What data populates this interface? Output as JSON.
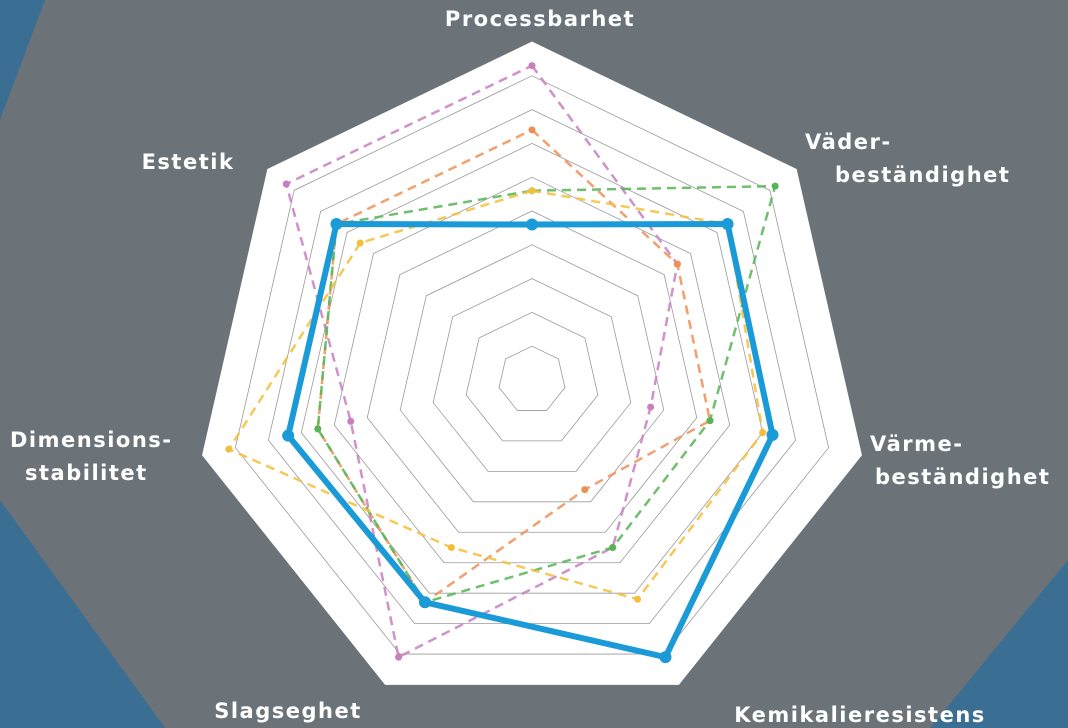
{
  "chart_data": {
    "type": "radar",
    "categories": [
      [
        "Processbarhet"
      ],
      [
        "Väder-",
        "beständighet"
      ],
      [
        "Värme-",
        "beständighet"
      ],
      [
        "Kemikalieresistens"
      ],
      [
        "Slagseghet"
      ],
      [
        "Dimensions-",
        "stabilitet"
      ],
      [
        "Estetik"
      ]
    ],
    "ylim": [
      0,
      10
    ],
    "yticks": [
      1,
      2,
      3,
      4,
      5,
      6,
      7,
      8,
      9,
      10
    ],
    "grid": true,
    "series": [
      {
        "color": "#c77fbf",
        "dashed": true,
        "values": [
          9.3,
          5.5,
          3.6,
          5.5,
          9.1,
          5.5,
          9.3
        ]
      },
      {
        "color": "#ee8f55",
        "dashed": true,
        "values": [
          7.4,
          5.5,
          5.4,
          3.6,
          7.3,
          6.5,
          7.4
        ]
      },
      {
        "color": "#55b555",
        "dashed": true,
        "values": [
          5.6,
          9.2,
          5.4,
          5.5,
          7.3,
          6.5,
          7.4
        ]
      },
      {
        "color": "#f3bf3a",
        "dashed": true,
        "values": [
          5.6,
          7.4,
          7.0,
          7.2,
          5.5,
          9.2,
          6.5
        ]
      },
      {
        "color": "#1a9ad6",
        "dashed": false,
        "values": [
          4.6,
          7.4,
          7.3,
          9.1,
          7.3,
          7.4,
          7.4
        ]
      }
    ]
  }
}
